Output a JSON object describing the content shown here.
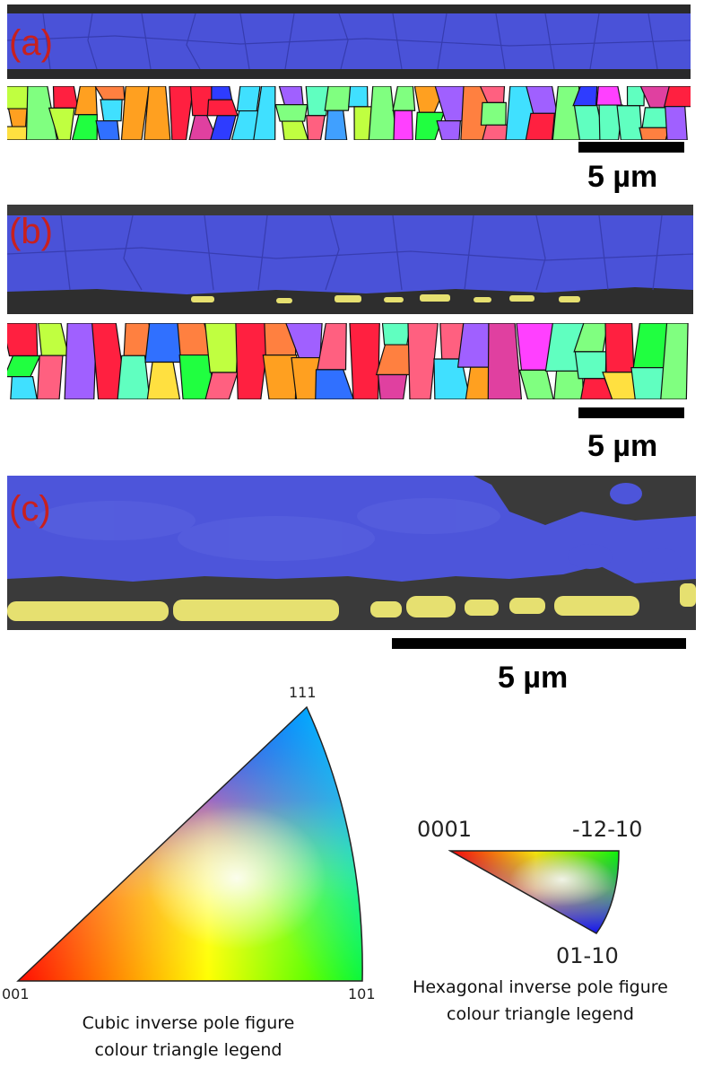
{
  "panels": [
    {
      "label": "(a)",
      "scale_label": "5 µm"
    },
    {
      "label": "(b)",
      "scale_label": "5 µm"
    },
    {
      "label": "(c)",
      "scale_label": "5 µm"
    }
  ],
  "legends": {
    "cubic": {
      "corner_labels": {
        "bottom_left": "001",
        "bottom_right": "101",
        "top": "111"
      },
      "caption_line1": "Cubic inverse pole figure",
      "caption_line2": "colour triangle legend"
    },
    "hexagonal": {
      "corner_labels": {
        "left": "0001",
        "right": "-12-10",
        "bottom": "01-10"
      },
      "caption_line1": "Hexagonal inverse pole figure",
      "caption_line2": "colour triangle legend"
    }
  },
  "colors": {
    "phase_blue": "#4a52d8",
    "phase_yellow": "#e6e070",
    "matrix_gray": "#3a3a3a",
    "label_red": "#c8201e"
  }
}
